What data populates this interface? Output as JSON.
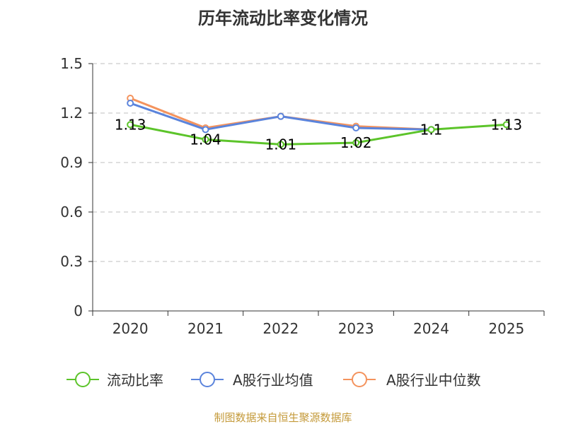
{
  "chart_data": {
    "type": "line",
    "title": "历年流动比率变化情况",
    "categories": [
      "2020",
      "2021",
      "2022",
      "2023",
      "2024",
      "2025"
    ],
    "ylim": [
      0,
      1.5
    ],
    "yticks": [
      "0",
      "0.3",
      "0.6",
      "0.9",
      "1.2",
      "1.5"
    ],
    "ytick_values": [
      0,
      0.3,
      0.6,
      0.9,
      1.2,
      1.5
    ],
    "grid": true,
    "legend_position": "bottom",
    "series": [
      {
        "name": "流动比率",
        "color": "#5cc42a",
        "values": [
          1.13,
          1.04,
          1.01,
          1.02,
          1.1,
          1.13
        ],
        "labels": [
          "1.13",
          "1.04",
          "1.01",
          "1.02",
          "1.1",
          "1.13"
        ]
      },
      {
        "name": "A股行业均值",
        "color": "#5b84dc",
        "values": [
          1.26,
          1.1,
          1.18,
          1.11,
          1.1,
          null
        ]
      },
      {
        "name": "A股行业中位数",
        "color": "#f4935d",
        "values": [
          1.29,
          1.11,
          1.18,
          1.12,
          1.1,
          null
        ]
      }
    ]
  },
  "source_text": "制图数据来自恒生聚源数据库"
}
